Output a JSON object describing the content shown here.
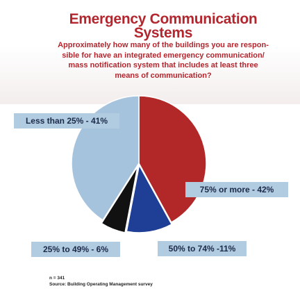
{
  "title_line1": "Emergency Communication",
  "title_line2": "Systems",
  "subtitle_lines": [
    "Approximately how many of the buildings you are respon-",
    "sible for have an integrated emergency communication/",
    "mass notification system that includes at least three",
    "means of communication?"
  ],
  "chart_data": {
    "type": "pie",
    "title": "Emergency Communication Systems",
    "slices": [
      {
        "label": "75% or more",
        "value": 42,
        "color": "#b22828"
      },
      {
        "label": "50% to 74%",
        "value": 11,
        "color": "#1f3f96"
      },
      {
        "label": "25% to 49%",
        "value": 6,
        "color": "#111111"
      },
      {
        "label": "Less than 25%",
        "value": 41,
        "color": "#a6c3dd"
      }
    ],
    "data_labels": [
      "Less than 25% - 41%",
      "75% or more - 42%",
      "50% to 74% -11%",
      "25% to 49% - 6%"
    ]
  },
  "footnote": {
    "n": "n = 341",
    "source": "Source: Building Operating Management survey"
  }
}
